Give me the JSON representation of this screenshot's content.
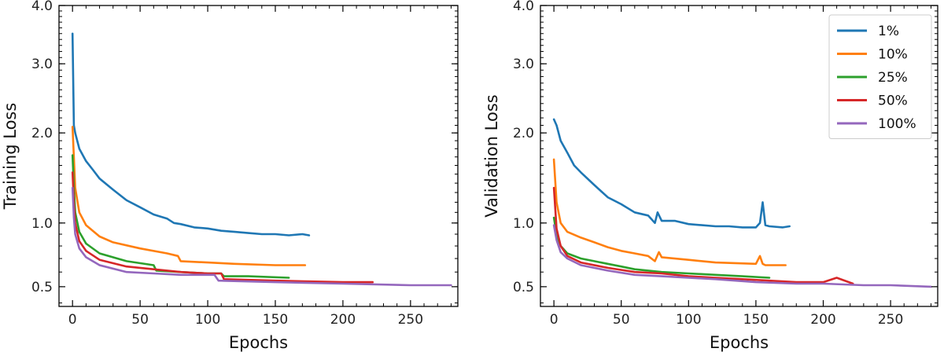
{
  "chart_data": [
    {
      "type": "line",
      "title": "",
      "xlabel": "Epochs",
      "ylabel": "Training Loss",
      "xlim": [
        -10,
        285
      ],
      "ylim": [
        0.38,
        4.0
      ],
      "xticks": [
        0,
        50,
        100,
        150,
        200,
        250
      ],
      "xtick_labels": [
        "0",
        "50",
        "100",
        "150",
        "200",
        "250"
      ],
      "yticks": [
        0.5,
        1.0,
        2.0,
        3.0,
        4.0
      ],
      "ytick_labels": [
        "0.5",
        "1.0",
        "2.0",
        "3.0",
        "4.0"
      ],
      "grid": false,
      "legend": null,
      "series": [
        {
          "name": "1%",
          "color": "#1f77b4",
          "x": [
            0,
            1,
            2,
            5,
            10,
            15,
            20,
            30,
            40,
            50,
            60,
            70,
            75,
            80,
            90,
            100,
            110,
            120,
            130,
            140,
            150,
            160,
            170,
            175
          ],
          "y": [
            3.5,
            2.1,
            2.0,
            1.8,
            1.65,
            1.55,
            1.45,
            1.33,
            1.22,
            1.15,
            1.08,
            1.04,
            1.0,
            0.99,
            0.96,
            0.95,
            0.93,
            0.92,
            0.91,
            0.9,
            0.9,
            0.89,
            0.9,
            0.89
          ]
        },
        {
          "name": "10%",
          "color": "#ff7f0e",
          "x": [
            0,
            1,
            2,
            5,
            10,
            20,
            30,
            50,
            70,
            78,
            80,
            100,
            120,
            150,
            172
          ],
          "y": [
            2.08,
            1.7,
            1.35,
            1.1,
            0.98,
            0.88,
            0.83,
            0.78,
            0.74,
            0.72,
            0.68,
            0.67,
            0.66,
            0.65,
            0.65
          ]
        },
        {
          "name": "25%",
          "color": "#2ca02c",
          "x": [
            0,
            1,
            2,
            5,
            10,
            20,
            40,
            60,
            62,
            80,
            100,
            110,
            112,
            130,
            160
          ],
          "y": [
            1.72,
            1.35,
            1.1,
            0.92,
            0.82,
            0.74,
            0.68,
            0.65,
            0.61,
            0.6,
            0.59,
            0.59,
            0.57,
            0.57,
            0.56
          ]
        },
        {
          "name": "50%",
          "color": "#d62728",
          "x": [
            0,
            1,
            2,
            5,
            10,
            20,
            40,
            60,
            80,
            100,
            110,
            112,
            150,
            200,
            222
          ],
          "y": [
            1.52,
            1.2,
            1.0,
            0.84,
            0.76,
            0.69,
            0.64,
            0.62,
            0.6,
            0.59,
            0.59,
            0.55,
            0.54,
            0.53,
            0.53
          ]
        },
        {
          "name": "100%",
          "color": "#9467bd",
          "x": [
            0,
            1,
            2,
            5,
            10,
            20,
            40,
            60,
            80,
            100,
            105,
            108,
            150,
            200,
            250,
            280
          ],
          "y": [
            1.35,
            1.05,
            0.9,
            0.78,
            0.71,
            0.65,
            0.6,
            0.59,
            0.58,
            0.58,
            0.58,
            0.54,
            0.53,
            0.52,
            0.51,
            0.51
          ]
        }
      ]
    },
    {
      "type": "line",
      "title": "",
      "xlabel": "Epochs",
      "ylabel": "Validation Loss",
      "xlim": [
        -10,
        285
      ],
      "ylim": [
        0.38,
        4.0
      ],
      "xticks": [
        0,
        50,
        100,
        150,
        200,
        250
      ],
      "xtick_labels": [
        "0",
        "50",
        "100",
        "150",
        "200",
        "250"
      ],
      "yticks": [
        0.5,
        1.0,
        2.0,
        3.0,
        4.0
      ],
      "ytick_labels": [
        "0.5",
        "1.0",
        "2.0",
        "3.0",
        "4.0"
      ],
      "grid": false,
      "legend": "top-right",
      "series": [
        {
          "name": "1%",
          "color": "#1f77b4",
          "x": [
            0,
            2,
            5,
            10,
            15,
            20,
            30,
            40,
            50,
            60,
            70,
            75,
            77,
            80,
            90,
            100,
            110,
            120,
            130,
            140,
            150,
            153,
            155,
            157,
            160,
            170,
            175
          ],
          "y": [
            2.18,
            2.1,
            1.9,
            1.75,
            1.6,
            1.52,
            1.38,
            1.25,
            1.18,
            1.1,
            1.07,
            1.0,
            1.1,
            1.02,
            1.02,
            0.99,
            0.98,
            0.97,
            0.97,
            0.96,
            0.96,
            1.0,
            1.2,
            0.98,
            0.97,
            0.96,
            0.97
          ]
        },
        {
          "name": "10%",
          "color": "#ff7f0e",
          "x": [
            0,
            2,
            5,
            10,
            20,
            30,
            40,
            50,
            60,
            70,
            75,
            78,
            80,
            100,
            120,
            150,
            153,
            155,
            157,
            172
          ],
          "y": [
            1.67,
            1.2,
            1.0,
            0.92,
            0.87,
            0.83,
            0.79,
            0.76,
            0.74,
            0.72,
            0.68,
            0.75,
            0.71,
            0.69,
            0.67,
            0.66,
            0.72,
            0.66,
            0.65,
            0.65
          ]
        },
        {
          "name": "25%",
          "color": "#2ca02c",
          "x": [
            0,
            2,
            5,
            10,
            20,
            30,
            40,
            50,
            60,
            80,
            100,
            120,
            140,
            160
          ],
          "y": [
            1.05,
            0.9,
            0.8,
            0.74,
            0.7,
            0.68,
            0.66,
            0.64,
            0.62,
            0.6,
            0.59,
            0.58,
            0.57,
            0.56
          ]
        },
        {
          "name": "50%",
          "color": "#d62728",
          "x": [
            0,
            2,
            5,
            10,
            20,
            40,
            60,
            80,
            100,
            120,
            140,
            160,
            180,
            200,
            210,
            222
          ],
          "y": [
            1.35,
            0.95,
            0.8,
            0.72,
            0.67,
            0.63,
            0.6,
            0.59,
            0.57,
            0.56,
            0.55,
            0.54,
            0.53,
            0.53,
            0.56,
            0.52
          ]
        },
        {
          "name": "100%",
          "color": "#9467bd",
          "x": [
            0,
            2,
            5,
            10,
            20,
            40,
            60,
            80,
            100,
            120,
            150,
            180,
            200,
            230,
            250,
            280
          ],
          "y": [
            0.98,
            0.85,
            0.75,
            0.7,
            0.65,
            0.61,
            0.58,
            0.57,
            0.56,
            0.55,
            0.53,
            0.52,
            0.52,
            0.51,
            0.51,
            0.5
          ]
        }
      ]
    }
  ]
}
